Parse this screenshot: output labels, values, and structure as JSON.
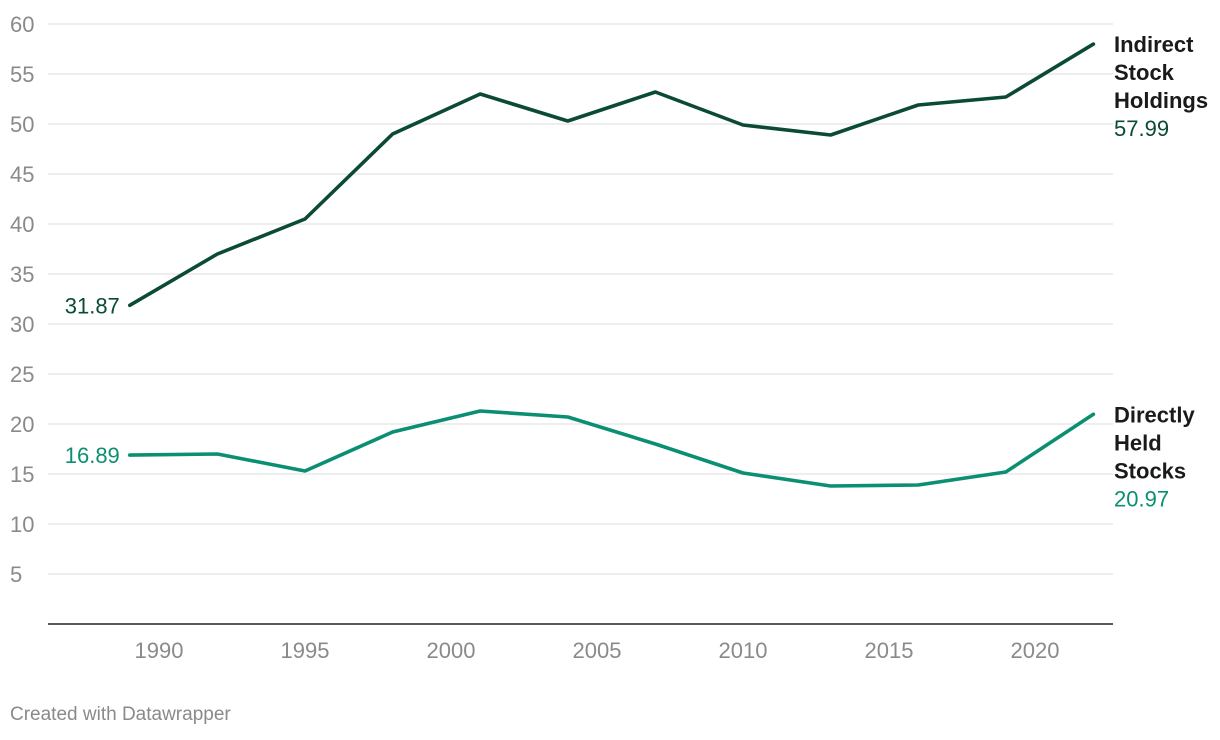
{
  "chart_data": {
    "type": "line",
    "title": "",
    "xlabel": "",
    "ylabel": "",
    "xlim": [
      1986.2,
      2023.0
    ],
    "ylim": [
      0,
      60
    ],
    "y_ticks": [
      5,
      10,
      15,
      20,
      25,
      30,
      35,
      40,
      45,
      50,
      55,
      60
    ],
    "x_ticks": [
      1990,
      1995,
      2000,
      2005,
      2010,
      2015,
      2020
    ],
    "grid": true,
    "legend": "none (direct labels at line ends)",
    "series": [
      {
        "name": "Indirect Stock Holdings",
        "label_lines": [
          "Indirect",
          "Stock",
          "Holdings"
        ],
        "color": "#0b4a33",
        "start_label": "31.87",
        "end_label": "57.99",
        "x": [
          1989,
          1992,
          1995,
          1998,
          2001,
          2004,
          2007,
          2010,
          2013,
          2016,
          2019,
          2022
        ],
        "values": [
          31.87,
          37.0,
          40.5,
          49.0,
          53.0,
          50.3,
          53.2,
          49.9,
          48.9,
          51.9,
          52.7,
          57.99
        ]
      },
      {
        "name": "Directly Held Stocks",
        "label_lines": [
          "Directly",
          "Held",
          "Stocks"
        ],
        "color": "#0b8f72",
        "start_label": "16.89",
        "end_label": "20.97",
        "x": [
          1989,
          1992,
          1995,
          1998,
          2001,
          2004,
          2007,
          2010,
          2013,
          2016,
          2019,
          2022
        ],
        "values": [
          16.89,
          17.0,
          15.3,
          19.2,
          21.3,
          20.7,
          18.0,
          15.1,
          13.8,
          13.9,
          15.2,
          20.97
        ]
      }
    ]
  },
  "footer": {
    "credit": "Created with Datawrapper"
  }
}
